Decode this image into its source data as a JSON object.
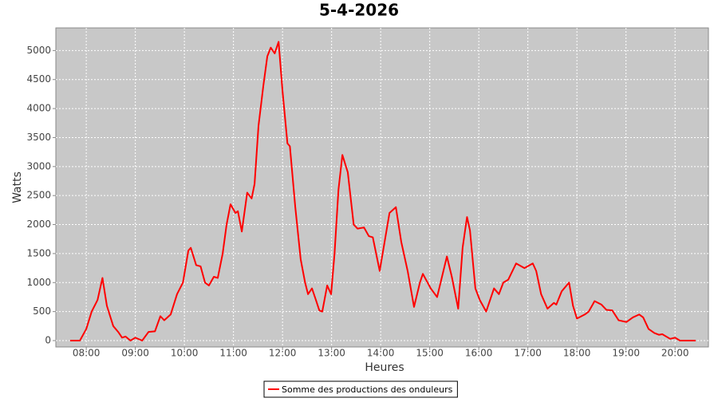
{
  "chart_data": {
    "type": "line",
    "title": "5-4-2026",
    "x_label": "Heures",
    "y_label": "Watts",
    "x": [
      7.67,
      7.87,
      8.0,
      8.11,
      8.23,
      8.33,
      8.42,
      8.55,
      8.65,
      8.73,
      8.8,
      8.9,
      9.0,
      9.14,
      9.27,
      9.4,
      9.51,
      9.59,
      9.72,
      9.85,
      9.97,
      10.08,
      10.13,
      10.24,
      10.33,
      10.42,
      10.5,
      10.6,
      10.68,
      10.78,
      10.86,
      10.94,
      11.04,
      11.09,
      11.17,
      11.28,
      11.37,
      11.43,
      11.51,
      11.61,
      11.69,
      11.76,
      11.84,
      11.92,
      12.0,
      12.1,
      12.15,
      12.26,
      12.37,
      12.46,
      12.52,
      12.6,
      12.68,
      12.75,
      12.81,
      12.91,
      12.99,
      13.06,
      13.14,
      13.22,
      13.33,
      13.45,
      13.53,
      13.66,
      13.76,
      13.84,
      13.98,
      14.08,
      14.18,
      14.31,
      14.42,
      14.55,
      14.68,
      14.8,
      14.86,
      15.02,
      15.15,
      15.35,
      15.45,
      15.58,
      15.67,
      15.76,
      15.82,
      15.93,
      16.02,
      16.15,
      16.31,
      16.41,
      16.5,
      16.6,
      16.76,
      16.93,
      17.1,
      17.17,
      17.27,
      17.4,
      17.53,
      17.58,
      17.69,
      17.84,
      17.92,
      18.0,
      18.16,
      18.24,
      18.36,
      18.5,
      18.6,
      18.72,
      18.85,
      19.01,
      19.14,
      19.27,
      19.35,
      19.46,
      19.58,
      19.67,
      19.74,
      19.9,
      20.0,
      20.1,
      20.42
    ],
    "series": [
      {
        "name": "Somme des productions des onduleurs",
        "color": "#ff0000",
        "values": [
          0,
          0,
          200,
          500,
          700,
          1080,
          600,
          250,
          150,
          50,
          70,
          0,
          50,
          0,
          150,
          160,
          420,
          350,
          450,
          800,
          1000,
          1550,
          1600,
          1300,
          1280,
          1000,
          950,
          1100,
          1080,
          1500,
          2000,
          2350,
          2200,
          2230,
          1880,
          2550,
          2450,
          2700,
          3700,
          4400,
          4900,
          5050,
          4950,
          5150,
          4300,
          3400,
          3350,
          2300,
          1400,
          1000,
          800,
          900,
          700,
          520,
          500,
          950,
          800,
          1500,
          2600,
          3200,
          2900,
          2000,
          1930,
          1950,
          1800,
          1780,
          1200,
          1700,
          2200,
          2300,
          1700,
          1200,
          580,
          1000,
          1150,
          900,
          750,
          1450,
          1100,
          550,
          1600,
          2130,
          1900,
          900,
          700,
          500,
          900,
          800,
          1000,
          1050,
          1330,
          1250,
          1330,
          1200,
          800,
          550,
          650,
          620,
          850,
          1000,
          600,
          380,
          450,
          500,
          680,
          620,
          530,
          520,
          350,
          320,
          400,
          450,
          400,
          200,
          130,
          100,
          110,
          30,
          50,
          0,
          0
        ]
      }
    ],
    "xlim": [
      7.38,
      20.68
    ],
    "ylim": [
      -110,
      5390
    ],
    "xticks": [
      {
        "value": 8,
        "label": "08:00"
      },
      {
        "value": 9,
        "label": "09:00"
      },
      {
        "value": 10,
        "label": "10:00"
      },
      {
        "value": 11,
        "label": "11:00"
      },
      {
        "value": 12,
        "label": "12:00"
      },
      {
        "value": 13,
        "label": "13:00"
      },
      {
        "value": 14,
        "label": "14:00"
      },
      {
        "value": 15,
        "label": "15:00"
      },
      {
        "value": 16,
        "label": "16:00"
      },
      {
        "value": 17,
        "label": "17:00"
      },
      {
        "value": 18,
        "label": "18:00"
      },
      {
        "value": 19,
        "label": "19:00"
      },
      {
        "value": 20,
        "label": "20:00"
      }
    ],
    "yticks": [
      0,
      500,
      1000,
      1500,
      2000,
      2500,
      3000,
      3500,
      4000,
      4500,
      5000
    ],
    "grid": true,
    "legend": "bottom"
  }
}
